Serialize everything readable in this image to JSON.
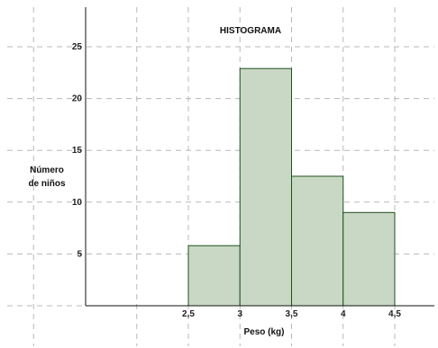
{
  "chart_data": {
    "type": "bar",
    "title": "HISTOGRAMA",
    "xlabel": "Peso (kg)",
    "ylabel_lines": [
      "Número",
      "de niños"
    ],
    "bins": [
      {
        "from": 2.5,
        "to": 3.0,
        "value": 5.8
      },
      {
        "from": 3.0,
        "to": 3.5,
        "value": 22.9
      },
      {
        "from": 3.5,
        "to": 4.0,
        "value": 12.5
      },
      {
        "from": 4.0,
        "to": 4.5,
        "value": 9.0
      }
    ],
    "xticks": [
      {
        "value": 2.5,
        "label": "2,5"
      },
      {
        "value": 3.0,
        "label": "3"
      },
      {
        "value": 3.5,
        "label": "3,5"
      },
      {
        "value": 4.0,
        "label": "4"
      },
      {
        "value": 4.5,
        "label": "4,5"
      }
    ],
    "yticks": [
      {
        "value": 5,
        "label": "5"
      },
      {
        "value": 10,
        "label": "10"
      },
      {
        "value": 15,
        "label": "15"
      },
      {
        "value": 20,
        "label": "20"
      },
      {
        "value": 25,
        "label": "25"
      }
    ],
    "xlim": [
      1.5,
      5.0
    ],
    "ylim": [
      0,
      29
    ],
    "grid": true,
    "bar_color": "#c9d8c5",
    "edge_color": "#1f4f1f"
  }
}
